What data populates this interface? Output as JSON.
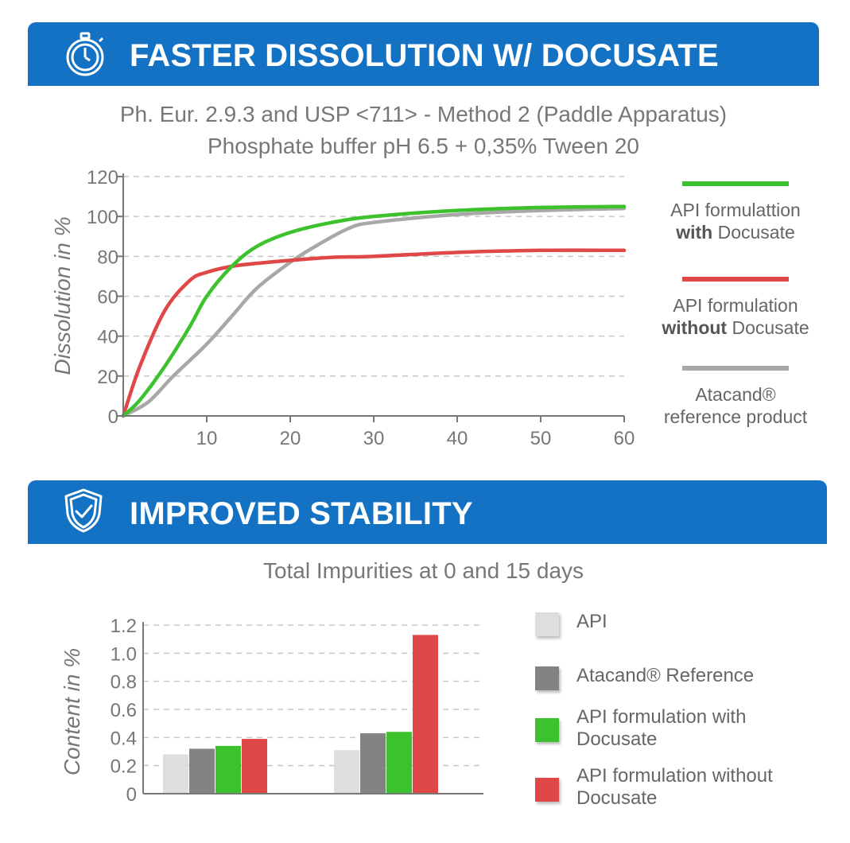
{
  "section1": {
    "title": "FASTER DISSOLUTION W/ DOCUSATE",
    "icon": "stopwatch-icon",
    "subtitle_line1": "Ph. Eur. 2.9.3 and USP <711> - Method 2 (Paddle Apparatus)",
    "subtitle_line2": "Phosphate buffer pH 6.5 + 0,35% Tween 20"
  },
  "section2": {
    "title": "IMPROVED STABILITY",
    "icon": "shield-check-icon",
    "subtitle": "Total Impurities at 0 and 15 days"
  },
  "chart_data": [
    {
      "type": "line",
      "title": "Ph. Eur. 2.9.3 and USP <711> - Method 2 (Paddle Apparatus)",
      "subtitle": "Phosphate buffer pH 6.5 + 0,35% Tween 20",
      "xlabel": "",
      "ylabel": "Dissolution in %",
      "xlim": [
        0,
        60
      ],
      "ylim": [
        0,
        120
      ],
      "xticks": [
        10,
        20,
        30,
        40,
        50,
        60
      ],
      "yticks": [
        0,
        20,
        40,
        60,
        80,
        100,
        120
      ],
      "grid": "horizontal dashed",
      "legend_position": "right",
      "series": [
        {
          "legend_line1": "API formulattion",
          "legend_bold": "with",
          "legend_rest": " Docusate",
          "color": "#3cc22c",
          "x": [
            0,
            2,
            5,
            8,
            10,
            13,
            16,
            20,
            25,
            30,
            40,
            50,
            60
          ],
          "y": [
            0,
            8,
            25,
            45,
            60,
            75,
            85,
            92,
            97,
            100,
            103,
            104.5,
            105
          ]
        },
        {
          "legend_line1": "API formulation",
          "legend_bold": "without",
          "legend_rest": " Docusate",
          "color": "#e04848",
          "x": [
            0,
            2,
            5,
            8,
            10,
            13,
            16,
            20,
            25,
            30,
            40,
            50,
            60
          ],
          "y": [
            0,
            25,
            53,
            68,
            72,
            75,
            76.5,
            78,
            79.5,
            80,
            82,
            83,
            83
          ]
        },
        {
          "legend_line1": "Atacand®",
          "legend_line2": "reference product",
          "color": "#a8a8a8",
          "x": [
            0,
            3,
            6,
            10,
            13,
            16,
            20,
            23,
            27,
            30,
            40,
            50,
            60
          ],
          "y": [
            0,
            7,
            20,
            36,
            50,
            64,
            77,
            85,
            94,
            97,
            101,
            103,
            104
          ]
        }
      ]
    },
    {
      "type": "bar",
      "title": "Total Impurities at 0 and 15 days",
      "xlabel": "",
      "ylabel": "Content in %",
      "ylim": [
        0,
        1.2
      ],
      "yticks": [
        "0",
        "0.2",
        "0.4",
        "0.6",
        "0.8",
        "1.0",
        "1.2"
      ],
      "categories": [
        "",
        ""
      ],
      "legend_position": "right",
      "series": [
        {
          "name": "API",
          "color": "#dedede",
          "values": [
            0.28,
            0.31
          ]
        },
        {
          "name": "Atacand® Reference",
          "color": "#838383",
          "values": [
            0.32,
            0.43
          ]
        },
        {
          "name": "API formulation with Docusate",
          "color": "#3cc22c",
          "values": [
            0.34,
            0.44
          ]
        },
        {
          "name": "API formulation without Docusate",
          "color": "#e04848",
          "values": [
            0.39,
            1.13
          ]
        }
      ]
    }
  ]
}
